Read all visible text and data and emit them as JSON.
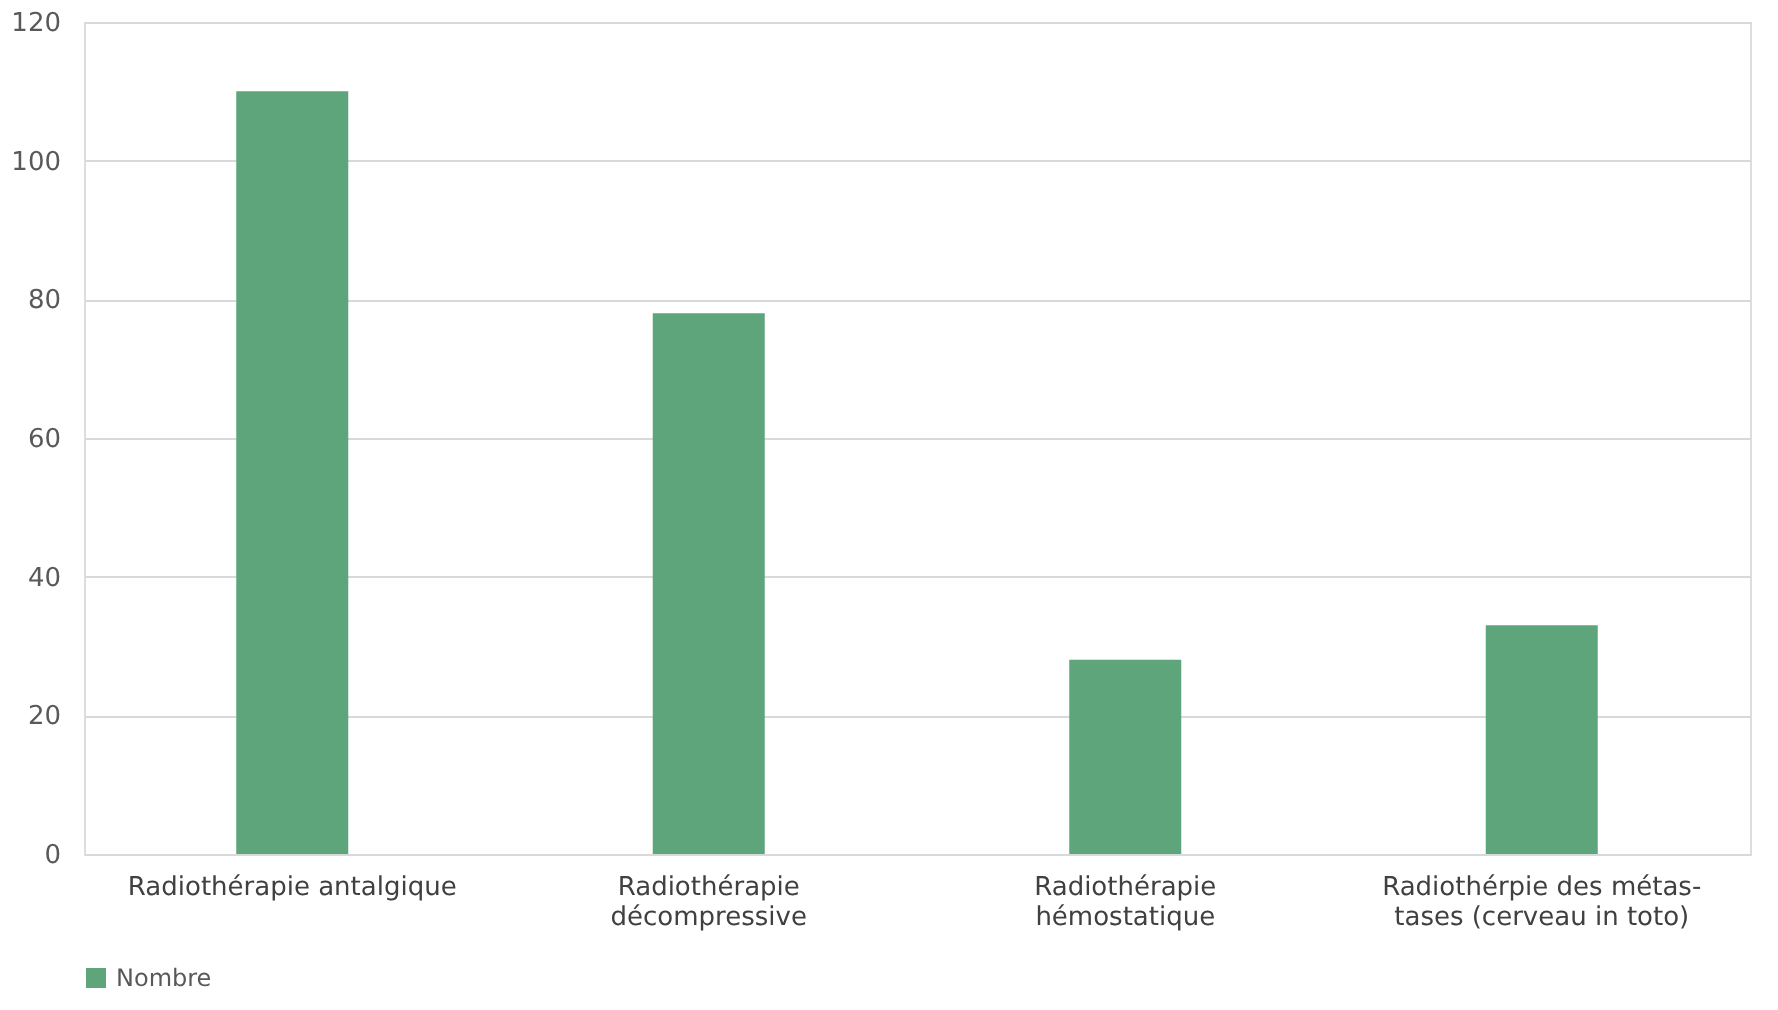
{
  "chart_data": {
    "type": "bar",
    "categories": [
      "Radiothérapie antalgique",
      "Radiothérapie\ndécompressive",
      "Radiothérapie\nhémostatique",
      "Radiothérpie des métas-\ntases (cerveau in toto)"
    ],
    "series": [
      {
        "name": "Nombre",
        "color": "#5ea57b",
        "values": [
          110,
          78,
          28,
          33
        ]
      }
    ],
    "ylim": [
      0,
      120
    ],
    "yticks": [
      0,
      20,
      40,
      60,
      80,
      100,
      120
    ],
    "grid": "y",
    "legend": "bottom"
  }
}
